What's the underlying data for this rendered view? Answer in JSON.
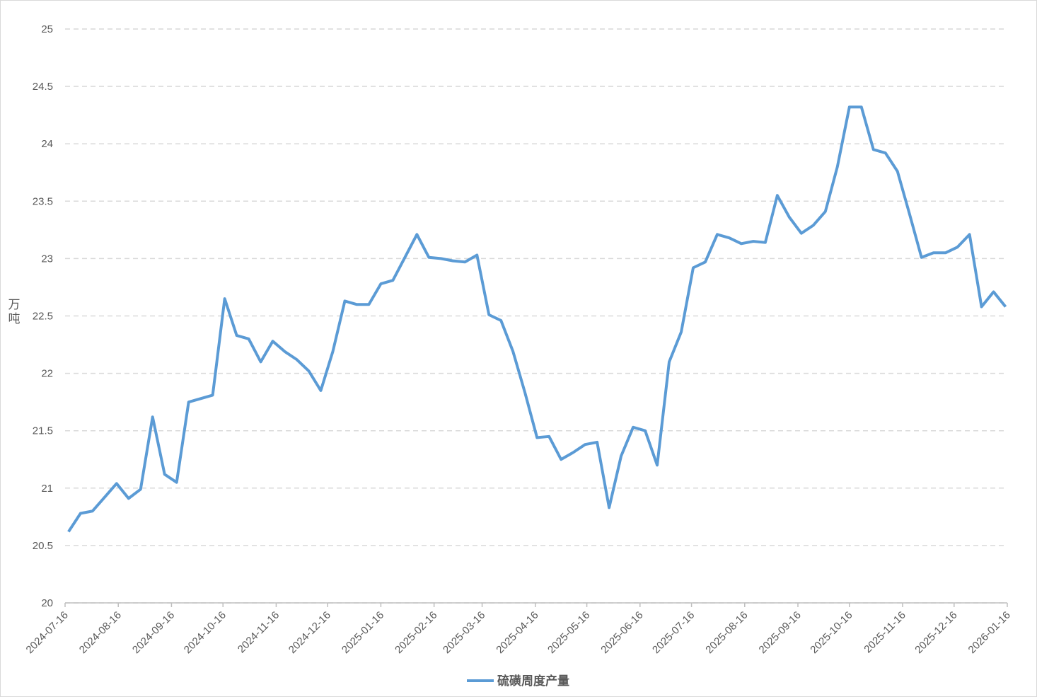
{
  "chart_data": {
    "type": "line",
    "y_label": "万吨",
    "x": [
      "2024-07-18",
      "2024-07-25",
      "2024-08-01",
      "2024-08-08",
      "2024-08-15",
      "2024-08-22",
      "2024-08-29",
      "2024-09-05",
      "2024-09-12",
      "2024-09-19",
      "2024-09-26",
      "2024-10-03",
      "2024-10-10",
      "2024-10-17",
      "2024-10-24",
      "2024-10-31",
      "2024-11-07",
      "2024-11-14",
      "2024-11-21",
      "2024-11-28",
      "2024-12-05",
      "2024-12-12",
      "2024-12-19",
      "2024-12-26",
      "2025-01-02",
      "2025-01-09",
      "2025-01-16",
      "2025-01-23",
      "2025-01-30",
      "2025-02-06",
      "2025-02-13",
      "2025-02-20",
      "2025-02-27",
      "2025-03-06",
      "2025-03-13",
      "2025-03-20",
      "2025-03-27",
      "2025-04-03",
      "2025-04-10",
      "2025-04-17",
      "2025-04-24",
      "2025-05-01",
      "2025-05-08",
      "2025-05-15",
      "2025-05-22",
      "2025-05-29",
      "2025-06-05",
      "2025-06-12",
      "2025-06-19",
      "2025-06-26",
      "2025-07-03",
      "2025-07-10",
      "2025-07-17",
      "2025-07-24",
      "2025-07-31",
      "2025-08-07",
      "2025-08-14",
      "2025-08-21",
      "2025-08-28",
      "2025-09-04",
      "2025-09-11",
      "2025-09-18",
      "2025-09-25",
      "2025-10-02",
      "2025-10-09",
      "2025-10-16",
      "2025-10-23",
      "2025-10-30",
      "2025-11-06",
      "2025-11-13",
      "2025-11-20",
      "2025-11-27",
      "2025-12-04",
      "2025-12-11",
      "2025-12-18",
      "2025-12-25",
      "2026-01-01",
      "2026-01-08",
      "2026-01-15"
    ],
    "series": [
      {
        "name": "硫磺周度产量",
        "color": "#5b9bd5",
        "values": [
          20.62,
          20.78,
          20.8,
          20.92,
          21.04,
          20.91,
          20.99,
          21.62,
          21.12,
          21.05,
          21.75,
          21.78,
          21.81,
          22.65,
          22.33,
          22.3,
          22.1,
          22.28,
          22.19,
          22.12,
          22.02,
          21.85,
          22.19,
          22.63,
          22.6,
          22.6,
          22.78,
          22.81,
          23.01,
          23.21,
          23.01,
          23.0,
          22.98,
          22.97,
          23.03,
          22.51,
          22.46,
          22.19,
          21.83,
          21.44,
          21.45,
          21.25,
          21.31,
          21.38,
          21.4,
          20.83,
          21.28,
          21.53,
          21.5,
          21.2,
          22.1,
          22.36,
          22.92,
          22.97,
          23.21,
          23.18,
          23.13,
          23.15,
          23.14,
          23.55,
          23.36,
          23.22,
          23.29,
          23.41,
          23.8,
          24.32,
          24.32,
          23.95,
          23.92,
          23.76,
          23.39,
          23.01,
          23.05,
          23.05,
          23.1,
          23.21,
          22.58,
          22.71,
          22.58
        ]
      }
    ],
    "xlim": [
      "2024-07-16",
      "2026-01-16"
    ],
    "xticks": [
      "2024-07-16",
      "2024-08-16",
      "2024-09-16",
      "2024-10-16",
      "2024-11-16",
      "2024-12-16",
      "2025-01-16",
      "2025-02-16",
      "2025-03-16",
      "2025-04-16",
      "2025-05-16",
      "2025-06-16",
      "2025-07-16",
      "2025-08-16",
      "2025-09-16",
      "2025-10-16",
      "2025-11-16",
      "2025-12-16",
      "2026-01-16"
    ],
    "ylim": [
      20,
      25
    ],
    "yticks": [
      20,
      20.5,
      21,
      21.5,
      22,
      22.5,
      23,
      23.5,
      24,
      24.5,
      25
    ],
    "grid": true,
    "legend": "bottom"
  }
}
